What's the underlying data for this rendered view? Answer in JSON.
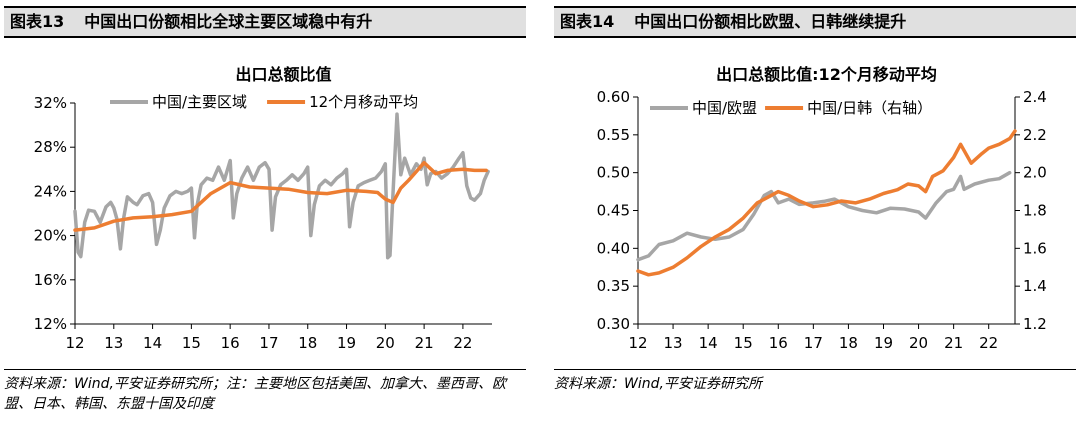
{
  "left_panel": {
    "figure_no": "图表13",
    "heading": "中国出口份额相比全球主要区域稳中有升",
    "source": "资料来源：Wind,平安证券研究所；注：主要地区包括美国、加拿大、墨西哥、欧盟、日本、韩国、东盟十国及印度"
  },
  "right_panel": {
    "figure_no": "图表14",
    "heading": "中国出口份额相比欧盟、日韩继续提升",
    "source": "资料来源：Wind,平安证券研究所"
  },
  "colors": {
    "gray": "#a6a6a6",
    "orange": "#ed7d31",
    "header_bg": "#e0e0e0"
  },
  "chart_data": [
    {
      "type": "line",
      "title": "出口总额比值",
      "xlabel": "",
      "ylabel": "",
      "x_ticks": [
        "12",
        "13",
        "14",
        "15",
        "16",
        "17",
        "18",
        "19",
        "20",
        "21",
        "22"
      ],
      "x_range": [
        2012.0,
        2022.75
      ],
      "ylim": [
        0.12,
        0.32
      ],
      "y_ticks": [
        0.12,
        0.16,
        0.2,
        0.24,
        0.28,
        0.32
      ],
      "y_tick_labels": [
        "12%",
        "16%",
        "20%",
        "24%",
        "28%",
        "32%"
      ],
      "legend": "top",
      "series": [
        {
          "name": "中国/主要区域",
          "color": "gray",
          "x": [
            2012.0,
            2012.08,
            2012.15,
            2012.25,
            2012.35,
            2012.5,
            2012.65,
            2012.8,
            2012.92,
            2013.0,
            2013.08,
            2013.17,
            2013.25,
            2013.35,
            2013.5,
            2013.6,
            2013.75,
            2013.9,
            2014.0,
            2014.1,
            2014.2,
            2014.3,
            2014.45,
            2014.6,
            2014.75,
            2014.9,
            2015.0,
            2015.08,
            2015.15,
            2015.25,
            2015.4,
            2015.55,
            2015.7,
            2015.85,
            2016.0,
            2016.08,
            2016.17,
            2016.3,
            2016.45,
            2016.6,
            2016.75,
            2016.9,
            2017.0,
            2017.08,
            2017.17,
            2017.3,
            2017.45,
            2017.6,
            2017.75,
            2017.9,
            2018.0,
            2018.08,
            2018.17,
            2018.3,
            2018.45,
            2018.6,
            2018.75,
            2018.9,
            2019.0,
            2019.08,
            2019.17,
            2019.3,
            2019.45,
            2019.6,
            2019.75,
            2019.9,
            2020.0,
            2020.06,
            2020.12,
            2020.2,
            2020.3,
            2020.4,
            2020.5,
            2020.65,
            2020.8,
            2020.92,
            2021.0,
            2021.08,
            2021.17,
            2021.3,
            2021.45,
            2021.6,
            2021.75,
            2021.9,
            2022.0,
            2022.1,
            2022.2,
            2022.3,
            2022.45,
            2022.55,
            2022.65
          ],
          "y": [
            0.222,
            0.185,
            0.181,
            0.212,
            0.223,
            0.222,
            0.212,
            0.226,
            0.23,
            0.225,
            0.215,
            0.188,
            0.215,
            0.235,
            0.23,
            0.228,
            0.236,
            0.238,
            0.23,
            0.192,
            0.205,
            0.225,
            0.236,
            0.24,
            0.238,
            0.24,
            0.243,
            0.198,
            0.228,
            0.246,
            0.252,
            0.25,
            0.262,
            0.25,
            0.268,
            0.216,
            0.238,
            0.252,
            0.262,
            0.25,
            0.262,
            0.266,
            0.26,
            0.205,
            0.235,
            0.246,
            0.25,
            0.255,
            0.25,
            0.256,
            0.262,
            0.2,
            0.228,
            0.245,
            0.25,
            0.246,
            0.252,
            0.256,
            0.26,
            0.208,
            0.23,
            0.245,
            0.248,
            0.25,
            0.252,
            0.258,
            0.265,
            0.18,
            0.182,
            0.24,
            0.31,
            0.255,
            0.27,
            0.255,
            0.265,
            0.26,
            0.27,
            0.246,
            0.256,
            0.258,
            0.252,
            0.256,
            0.262,
            0.27,
            0.275,
            0.245,
            0.234,
            0.232,
            0.238,
            0.25,
            0.258
          ]
        },
        {
          "name": "12个月移动平均",
          "color": "orange",
          "x": [
            2012.0,
            2012.5,
            2013.0,
            2013.5,
            2014.0,
            2014.5,
            2015.0,
            2015.5,
            2016.0,
            2016.5,
            2017.0,
            2017.5,
            2018.0,
            2018.5,
            2019.0,
            2019.5,
            2019.8,
            2020.0,
            2020.2,
            2020.4,
            2020.6,
            2020.8,
            2021.0,
            2021.3,
            2021.6,
            2022.0,
            2022.3,
            2022.6
          ],
          "y": [
            0.205,
            0.207,
            0.213,
            0.216,
            0.217,
            0.219,
            0.222,
            0.238,
            0.248,
            0.244,
            0.243,
            0.242,
            0.239,
            0.238,
            0.241,
            0.24,
            0.239,
            0.233,
            0.23,
            0.243,
            0.25,
            0.258,
            0.266,
            0.256,
            0.259,
            0.26,
            0.259,
            0.259
          ]
        }
      ]
    },
    {
      "type": "line",
      "title": "出口总额比值:12个月移动平均",
      "xlabel": "",
      "ylabel": "",
      "x_ticks": [
        "12",
        "13",
        "14",
        "15",
        "16",
        "17",
        "18",
        "19",
        "20",
        "21",
        "22"
      ],
      "x_range": [
        2012.0,
        2022.75
      ],
      "ylim": [
        0.3,
        0.6
      ],
      "y_ticks": [
        0.3,
        0.35,
        0.4,
        0.45,
        0.5,
        0.55,
        0.6
      ],
      "y_tick_labels": [
        "0.30",
        "0.35",
        "0.40",
        "0.45",
        "0.50",
        "0.55",
        "0.60"
      ],
      "y2lim": [
        1.2,
        2.4
      ],
      "y2_ticks": [
        1.2,
        1.4,
        1.6,
        1.8,
        2.0,
        2.2,
        2.4
      ],
      "y2_tick_labels": [
        "1.2",
        "1.4",
        "1.6",
        "1.8",
        "2.0",
        "2.2",
        "2.4"
      ],
      "legend": "top",
      "series": [
        {
          "name": "中国/欧盟",
          "color": "gray",
          "axis": "left",
          "x": [
            2012.0,
            2012.3,
            2012.6,
            2013.0,
            2013.4,
            2013.8,
            2014.2,
            2014.6,
            2015.0,
            2015.3,
            2015.6,
            2015.8,
            2016.0,
            2016.3,
            2016.6,
            2017.0,
            2017.3,
            2017.6,
            2018.0,
            2018.4,
            2018.8,
            2019.2,
            2019.6,
            2020.0,
            2020.2,
            2020.5,
            2020.8,
            2021.0,
            2021.2,
            2021.3,
            2021.6,
            2022.0,
            2022.3,
            2022.6
          ],
          "y": [
            0.385,
            0.39,
            0.405,
            0.41,
            0.42,
            0.415,
            0.412,
            0.415,
            0.425,
            0.445,
            0.47,
            0.475,
            0.46,
            0.465,
            0.458,
            0.46,
            0.462,
            0.465,
            0.455,
            0.45,
            0.447,
            0.453,
            0.452,
            0.448,
            0.44,
            0.46,
            0.475,
            0.478,
            0.495,
            0.478,
            0.485,
            0.49,
            0.492,
            0.5
          ]
        },
        {
          "name": "中国/日韩（右轴）",
          "color": "orange",
          "axis": "right",
          "x": [
            2012.0,
            2012.3,
            2012.6,
            2013.0,
            2013.4,
            2013.8,
            2014.2,
            2014.6,
            2015.0,
            2015.4,
            2015.7,
            2016.0,
            2016.3,
            2016.6,
            2017.0,
            2017.4,
            2017.8,
            2018.2,
            2018.6,
            2019.0,
            2019.4,
            2019.7,
            2020.0,
            2020.2,
            2020.4,
            2020.7,
            2021.0,
            2021.2,
            2021.5,
            2021.8,
            2022.0,
            2022.3,
            2022.6,
            2022.75
          ],
          "y": [
            1.48,
            1.46,
            1.47,
            1.5,
            1.55,
            1.61,
            1.66,
            1.7,
            1.76,
            1.84,
            1.87,
            1.9,
            1.88,
            1.85,
            1.82,
            1.83,
            1.85,
            1.84,
            1.86,
            1.89,
            1.91,
            1.94,
            1.93,
            1.9,
            1.98,
            2.01,
            2.08,
            2.15,
            2.05,
            2.1,
            2.13,
            2.15,
            2.18,
            2.22
          ]
        }
      ]
    }
  ]
}
